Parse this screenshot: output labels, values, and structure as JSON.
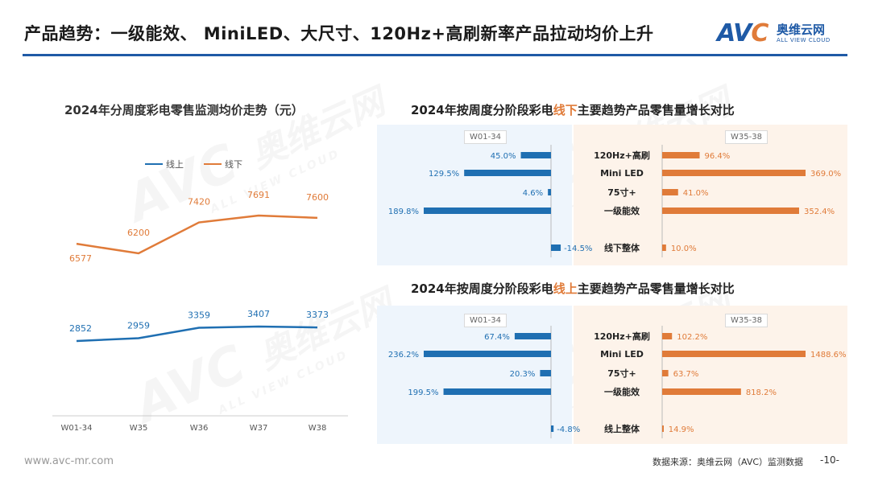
{
  "header": {
    "title": "产品趋势：一级能效、 MiniLED、大尺寸、120Hz+高刷新率产品拉动均价上升",
    "logo_mark": "AVC",
    "logo_cn": "奥维云网",
    "logo_en": "ALL VIEW CLOUD"
  },
  "colors": {
    "online": "#1f6fb2",
    "offline": "#e07b39",
    "accent": "#1f5aa6"
  },
  "left_chart": {
    "title": "2024年分周度彩电零售监测均价走势（元）",
    "legend": {
      "online": "线上",
      "offline": "线下"
    }
  },
  "offline_panel": {
    "title_pre": "2024年按周度分阶段彩电",
    "title_hl": "线下",
    "title_post": "主要趋势产品零售量增长对比",
    "tag_left": "W01-34",
    "tag_right": "W35-38"
  },
  "online_panel": {
    "title_pre": "2024年按周度分阶段彩电",
    "title_hl": "线上",
    "title_post": "主要趋势产品零售量增长对比",
    "tag_left": "W01-34",
    "tag_right": "W35-38"
  },
  "chart_data": [
    {
      "type": "line",
      "title": "2024年分周度彩电零售监测均价走势（元）",
      "categories": [
        "W01-34",
        "W35",
        "W36",
        "W37",
        "W38"
      ],
      "series": [
        {
          "name": "线下",
          "values": [
            6577,
            6200,
            7420,
            7691,
            7600
          ]
        },
        {
          "name": "线上",
          "values": [
            2852,
            2959,
            3359,
            3407,
            3373
          ]
        }
      ],
      "legend_position": "top"
    },
    {
      "type": "bar",
      "title": "2024年按周度分阶段彩电线下主要趋势产品零售量增长对比",
      "categories": [
        "120Hz+高刷",
        "Mini LED",
        "75寸+",
        "一级能效",
        "线下整体"
      ],
      "series": [
        {
          "name": "W01-34",
          "values": [
            45.0,
            129.5,
            4.6,
            189.8,
            -14.5
          ]
        },
        {
          "name": "W35-38",
          "values": [
            96.4,
            369.0,
            41.0,
            352.4,
            10.0
          ]
        }
      ],
      "labels_left": [
        "45.0%",
        "129.5%",
        "4.6%",
        "189.8%",
        "-14.5%"
      ],
      "labels_right": [
        "96.4%",
        "369.0%",
        "41.0%",
        "352.4%",
        "10.0%"
      ]
    },
    {
      "type": "bar",
      "title": "2024年按周度分阶段彩电线上主要趋势产品零售量增长对比",
      "categories": [
        "120Hz+高刷",
        "Mini LED",
        "75寸+",
        "一级能效",
        "线上整体"
      ],
      "series": [
        {
          "name": "W01-34",
          "values": [
            67.4,
            236.2,
            20.3,
            199.5,
            -4.8
          ]
        },
        {
          "name": "W35-38",
          "values": [
            102.2,
            1488.6,
            63.7,
            818.2,
            14.9
          ]
        }
      ],
      "labels_left": [
        "67.4%",
        "236.2%",
        "20.3%",
        "199.5%",
        "-4.8%"
      ],
      "labels_right": [
        "102.2%",
        "1488.6%",
        "63.7%",
        "818.2%",
        "14.9%"
      ]
    }
  ],
  "footer": {
    "url": "www.avc-mr.com",
    "source": "数据来源：奥维云网（AVC）监测数据",
    "page": "-10-"
  }
}
